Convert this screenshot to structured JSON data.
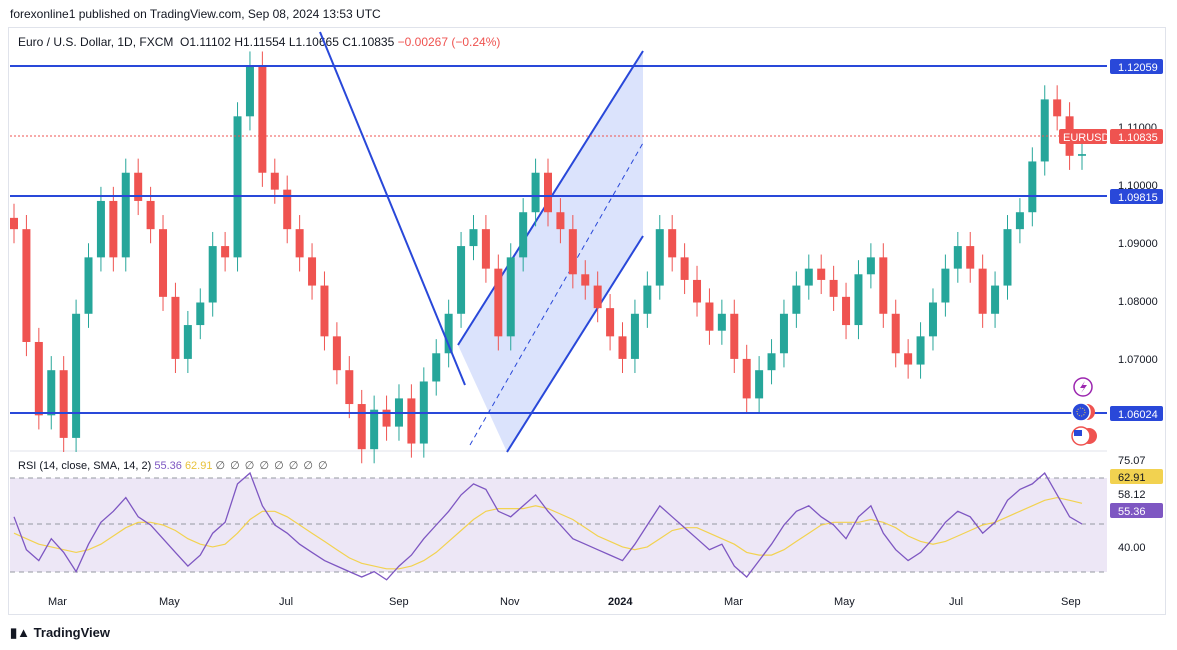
{
  "header": {
    "published": "forexonline1 published on TradingView.com, Sep 08, 2024 13:53 UTC"
  },
  "symbol": {
    "name": "Euro / U.S. Dollar, 1D, FXCM",
    "open": "O1.11102",
    "high": "H1.11554",
    "low": "L1.10665",
    "close": "C1.10835",
    "change": "−0.00267 (−0.24%)"
  },
  "rsi_legend": {
    "label": "RSI (14, close, SMA, 14, 2)",
    "rsi_value": "55.36",
    "sma_value": "62.91",
    "icons": "∅ ∅ ∅ ∅ ∅ ∅ ∅ ∅"
  },
  "price_tags": {
    "top_level": "1.12059",
    "symbol_tag": "EURUSD",
    "last_price": "1.10835",
    "mid_level": "1.09815",
    "low_level": "1.06024"
  },
  "rsi_tags": {
    "sma": "62.91",
    "rsi": "55.36"
  },
  "footer": {
    "brand": "TradingView"
  },
  "colors": {
    "up": "#26a69a",
    "down": "#ef5350",
    "level_line": "#2948d9",
    "rsi_line": "#7e57c2",
    "rsi_sma": "#f2d250",
    "channel_fill": "#cfd9fb"
  },
  "chart_data": [
    {
      "type": "candlestick",
      "title": "Euro / U.S. Dollar, 1D, FXCM",
      "x_tick_labels": [
        "Mar",
        "May",
        "Jul",
        "Sep",
        "Nov",
        "2024",
        "Mar",
        "May",
        "Jul",
        "Sep"
      ],
      "y_tick_labels": [
        "1.11000",
        "1.10000",
        "1.09000",
        "1.08000",
        "1.07000"
      ],
      "ylim": [
        1.0555,
        1.1303
      ],
      "horizontal_levels": [
        1.12059,
        1.09815,
        1.06024
      ],
      "last_price": 1.10835,
      "closes_approx": [
        1.095,
        1.075,
        1.062,
        1.07,
        1.058,
        1.08,
        1.09,
        1.1,
        1.09,
        1.105,
        1.1,
        1.095,
        1.083,
        1.072,
        1.078,
        1.082,
        1.092,
        1.09,
        1.115,
        1.124,
        1.105,
        1.102,
        1.095,
        1.09,
        1.085,
        1.076,
        1.07,
        1.064,
        1.056,
        1.063,
        1.06,
        1.065,
        1.057,
        1.068,
        1.073,
        1.08,
        1.092,
        1.095,
        1.088,
        1.076,
        1.09,
        1.098,
        1.105,
        1.098,
        1.095,
        1.087,
        1.085,
        1.081,
        1.076,
        1.072,
        1.08,
        1.085,
        1.095,
        1.09,
        1.086,
        1.082,
        1.077,
        1.08,
        1.072,
        1.065,
        1.07,
        1.073,
        1.08,
        1.085,
        1.088,
        1.086,
        1.083,
        1.078,
        1.087,
        1.09,
        1.08,
        1.073,
        1.071,
        1.076,
        1.082,
        1.088,
        1.092,
        1.088,
        1.08,
        1.085,
        1.095,
        1.098,
        1.107,
        1.118,
        1.115,
        1.108,
        1.1083
      ]
    },
    {
      "type": "line",
      "title": "RSI (14, close, SMA, 14, 2)",
      "y_tick_labels": [
        "75.07",
        "58.12",
        "40.00"
      ],
      "ylim": [
        32,
        78
      ],
      "series": [
        {
          "name": "RSI",
          "values": [
            58,
            46,
            42,
            50,
            45,
            38,
            48,
            56,
            60,
            65,
            58,
            55,
            50,
            45,
            40,
            44,
            52,
            56,
            70,
            74,
            62,
            55,
            52,
            48,
            45,
            42,
            40,
            38,
            36,
            38,
            35,
            40,
            44,
            50,
            55,
            60,
            66,
            70,
            68,
            60,
            58,
            62,
            66,
            60,
            55,
            50,
            48,
            46,
            44,
            42,
            48,
            55,
            62,
            58,
            54,
            50,
            46,
            48,
            40,
            36,
            42,
            48,
            55,
            60,
            62,
            58,
            55,
            50,
            58,
            62,
            52,
            46,
            42,
            45,
            50,
            56,
            60,
            58,
            52,
            56,
            64,
            68,
            70,
            74,
            66,
            58,
            55.36
          ]
        },
        {
          "name": "SMA",
          "values": [
            52,
            50,
            48,
            47,
            46,
            45,
            46,
            48,
            51,
            54,
            56,
            56,
            55,
            53,
            50,
            48,
            47,
            48,
            52,
            57,
            60,
            60,
            58,
            55,
            52,
            49,
            46,
            43,
            41,
            40,
            39,
            39,
            40,
            42,
            45,
            49,
            53,
            57,
            60,
            61,
            61,
            61,
            62,
            61,
            59,
            57,
            54,
            51,
            49,
            47,
            46,
            47,
            50,
            53,
            54,
            54,
            52,
            50,
            48,
            45,
            44,
            44,
            46,
            49,
            52,
            55,
            56,
            56,
            56,
            57,
            56,
            54,
            51,
            49,
            48,
            49,
            51,
            53,
            55,
            56,
            58,
            60,
            62,
            64,
            65,
            64,
            62.91
          ]
        }
      ]
    }
  ]
}
